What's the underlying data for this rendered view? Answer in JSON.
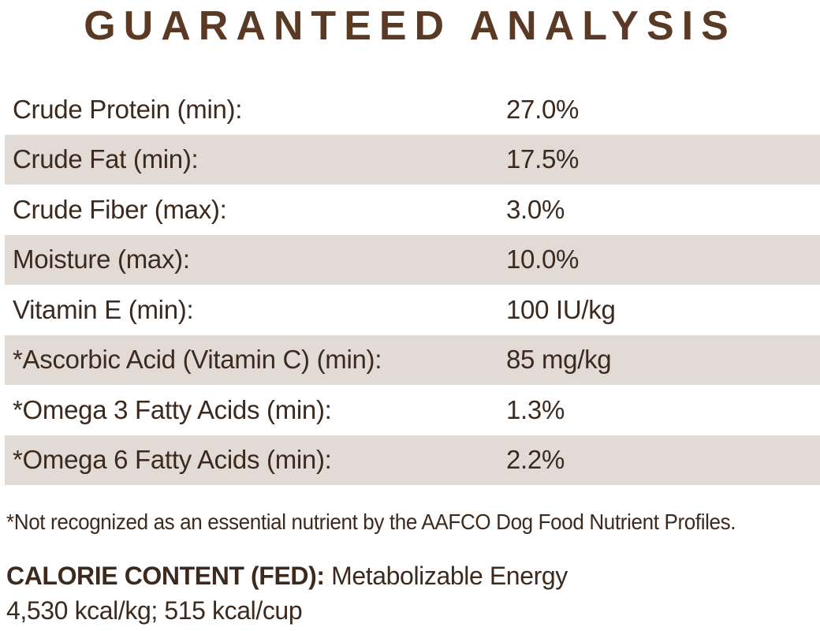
{
  "page": {
    "title": "GUARANTEED ANALYSIS"
  },
  "analysis_table": {
    "rows": [
      {
        "label": "Crude Protein (min):",
        "value": "27.0%"
      },
      {
        "label": "Crude Fat (min):",
        "value": "17.5%"
      },
      {
        "label": "Crude Fiber (max):",
        "value": "3.0%"
      },
      {
        "label": "Moisture (max):",
        "value": "10.0%"
      },
      {
        "label": "Vitamin E (min):",
        "value": "100 IU/kg"
      },
      {
        "label": "*Ascorbic Acid (Vitamin C) (min):",
        "value": "85 mg/kg"
      },
      {
        "label": "*Omega 3 Fatty Acids (min):",
        "value": "1.3%"
      },
      {
        "label": "*Omega 6 Fatty Acids (min):",
        "value": "2.2%"
      }
    ]
  },
  "footnote": "*Not recognized as an essential nutrient by the AAFCO Dog Food Nutrient Profiles.",
  "calorie_content": {
    "heading": "CALORIE CONTENT (FED):",
    "description": "Metabolizable Energy",
    "values_line": "4,530 kcal/kg; 515 kcal/cup"
  },
  "colors": {
    "title_brown": "#5a3a24",
    "text_brown": "#3d2a1e",
    "row_shade_beige": "#e2dbd5",
    "background": "#ffffff"
  }
}
